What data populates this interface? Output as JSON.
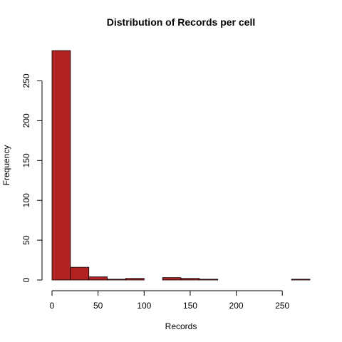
{
  "chart_data": {
    "type": "bar",
    "title": "Distribution of Records per cell",
    "xlabel": "Records",
    "ylabel": "Frequency",
    "bar_color": "#B22222",
    "bin_width": 20,
    "bins": [
      {
        "start": 0,
        "end": 20,
        "count": 288
      },
      {
        "start": 20,
        "end": 40,
        "count": 16
      },
      {
        "start": 40,
        "end": 60,
        "count": 4
      },
      {
        "start": 60,
        "end": 80,
        "count": 1
      },
      {
        "start": 80,
        "end": 100,
        "count": 2
      },
      {
        "start": 100,
        "end": 120,
        "count": 0
      },
      {
        "start": 120,
        "end": 140,
        "count": 3
      },
      {
        "start": 140,
        "end": 160,
        "count": 2
      },
      {
        "start": 160,
        "end": 180,
        "count": 1
      },
      {
        "start": 180,
        "end": 200,
        "count": 0
      },
      {
        "start": 200,
        "end": 220,
        "count": 0
      },
      {
        "start": 220,
        "end": 240,
        "count": 0
      },
      {
        "start": 240,
        "end": 260,
        "count": 0
      },
      {
        "start": 260,
        "end": 280,
        "count": 1
      }
    ],
    "xlim": [
      0,
      280
    ],
    "ylim": [
      0,
      288
    ],
    "x_ticks": [
      0,
      50,
      100,
      150,
      200,
      250
    ],
    "y_ticks": [
      0,
      50,
      100,
      150,
      200,
      250
    ],
    "x_tick_labels": [
      "0",
      "50",
      "100",
      "150",
      "200",
      "250"
    ],
    "y_tick_labels": [
      "0",
      "50",
      "100",
      "150",
      "200",
      "250"
    ],
    "grid": false,
    "legend": "none"
  }
}
